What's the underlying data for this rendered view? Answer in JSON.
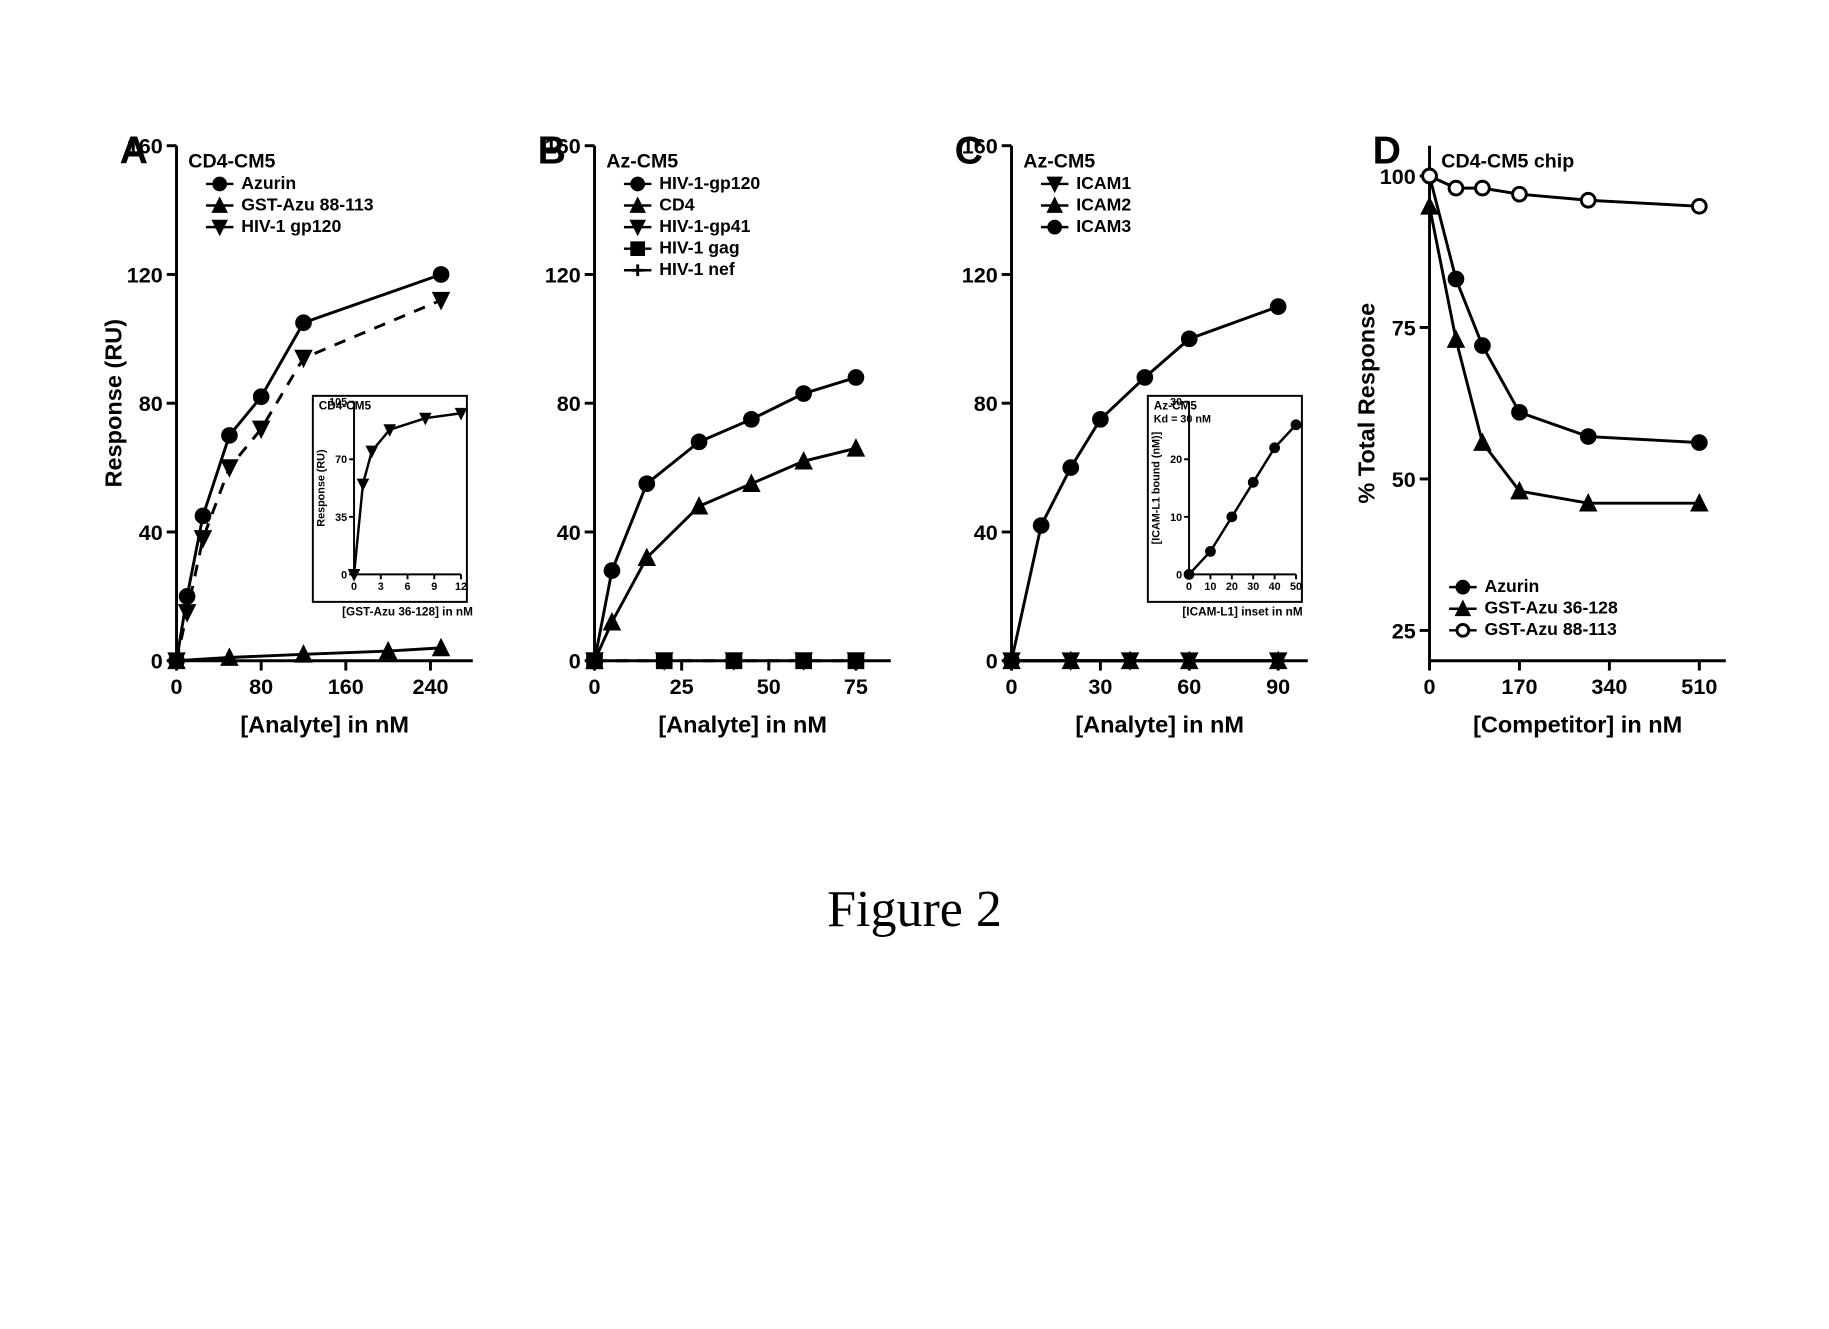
{
  "figure_caption": "Figure 2",
  "global": {
    "line_color": "#000000",
    "marker_fill": "#000000",
    "open_marker_fill": "#ffffff",
    "background": "#ffffff",
    "axis_stroke_width": 3,
    "data_stroke_width": 3,
    "panel_label_fontsize": 40,
    "axis_label_fontsize": 24,
    "tick_fontsize": 22,
    "legend_fontsize": 18,
    "title_fontsize": 20
  },
  "panels": {
    "A": {
      "label": "A",
      "title": "CD4-CM5",
      "xlabel": "[Analyte] in nM",
      "ylabel": "Response (RU)",
      "xlim": [
        0,
        280
      ],
      "xticks": [
        0,
        80,
        160,
        240
      ],
      "ylim": [
        0,
        160
      ],
      "yticks": [
        0,
        40,
        80,
        120,
        160
      ],
      "series": [
        {
          "name": "Azurin",
          "marker": "circle",
          "dash": "solid",
          "x": [
            0,
            10,
            25,
            50,
            80,
            120,
            250
          ],
          "y": [
            0,
            20,
            45,
            70,
            82,
            105,
            120
          ]
        },
        {
          "name": "GST-Azu 88-113",
          "marker": "triangle-up",
          "dash": "solid",
          "x": [
            0,
            50,
            120,
            200,
            250
          ],
          "y": [
            0,
            1,
            2,
            3,
            4
          ]
        },
        {
          "name": "HIV-1 gp120",
          "marker": "triangle-down",
          "dash": "dashed",
          "x": [
            0,
            10,
            25,
            50,
            80,
            120,
            250
          ],
          "y": [
            0,
            15,
            38,
            60,
            72,
            94,
            112
          ]
        }
      ],
      "inset": {
        "title": "CD4-CM5",
        "xlabel": "[GST-Azu 36-128] in nM",
        "ylabel": "Response (RU)",
        "xlim": [
          0,
          12
        ],
        "xticks": [
          0,
          3,
          6,
          9,
          12
        ],
        "ylim": [
          0,
          105
        ],
        "yticks": [
          0,
          35,
          70,
          105
        ],
        "series": [
          {
            "marker": "triangle-down",
            "dash": "solid",
            "x": [
              0,
              1,
              2,
              4,
              8,
              12
            ],
            "y": [
              0,
              55,
              75,
              88,
              95,
              98
            ]
          }
        ]
      }
    },
    "B": {
      "label": "B",
      "title": "Az-CM5",
      "xlabel": "[Analyte] in nM",
      "ylabel": "",
      "xlim": [
        0,
        85
      ],
      "xticks": [
        0,
        25,
        50,
        75
      ],
      "ylim": [
        0,
        160
      ],
      "yticks": [
        0,
        40,
        80,
        120,
        160
      ],
      "series": [
        {
          "name": "HIV-1-gp120",
          "marker": "circle",
          "dash": "solid",
          "x": [
            0,
            5,
            15,
            30,
            45,
            60,
            75
          ],
          "y": [
            0,
            28,
            55,
            68,
            75,
            83,
            88
          ]
        },
        {
          "name": "CD4",
          "marker": "triangle-up",
          "dash": "solid",
          "x": [
            0,
            5,
            15,
            30,
            45,
            60,
            75
          ],
          "y": [
            0,
            12,
            32,
            48,
            55,
            62,
            66
          ]
        },
        {
          "name": "HIV-1-gp41",
          "marker": "triangle-down",
          "dash": "dashed",
          "x": [
            0,
            20,
            40,
            60,
            75
          ],
          "y": [
            0,
            0,
            0,
            0,
            0
          ]
        },
        {
          "name": "HIV-1 gag",
          "marker": "square",
          "dash": "none",
          "x": [
            0,
            20,
            40,
            60,
            75
          ],
          "y": [
            0,
            0,
            0,
            0,
            0
          ]
        },
        {
          "name": "HIV-1 nef",
          "marker": "plus",
          "dash": "none",
          "x": [
            0,
            20,
            40,
            60,
            75
          ],
          "y": [
            0,
            0,
            0,
            0,
            0
          ]
        }
      ]
    },
    "C": {
      "label": "C",
      "title": "Az-CM5",
      "xlabel": "[Analyte] in nM",
      "ylabel": "",
      "xlim": [
        0,
        100
      ],
      "xticks": [
        0,
        30,
        60,
        90
      ],
      "ylim": [
        0,
        160
      ],
      "yticks": [
        0,
        40,
        80,
        120,
        160
      ],
      "series": [
        {
          "name": "ICAM1",
          "marker": "triangle-down",
          "dash": "solid",
          "x": [
            0,
            20,
            40,
            60,
            90
          ],
          "y": [
            0,
            0,
            0,
            0,
            0
          ]
        },
        {
          "name": "ICAM2",
          "marker": "triangle-up",
          "dash": "solid",
          "x": [
            0,
            20,
            40,
            60,
            90
          ],
          "y": [
            0,
            0,
            0,
            0,
            0
          ]
        },
        {
          "name": "ICAM3",
          "marker": "circle",
          "dash": "solid",
          "x": [
            0,
            10,
            20,
            30,
            45,
            60,
            90
          ],
          "y": [
            0,
            42,
            60,
            75,
            88,
            100,
            110
          ]
        }
      ],
      "inset": {
        "title": "Az-CM5",
        "subtitle": "Kd = 30 nM",
        "xlabel": "[ICAM-L1] inset in nM",
        "ylabel": "[ICAM-L1 bound (nM)]",
        "xlim": [
          0,
          50
        ],
        "xticks": [
          0,
          10,
          20,
          30,
          40,
          50
        ],
        "ylim": [
          0,
          30
        ],
        "yticks": [
          0,
          10,
          20,
          30
        ],
        "series": [
          {
            "marker": "circle",
            "dash": "solid",
            "x": [
              0,
              10,
              20,
              30,
              40,
              50
            ],
            "y": [
              0,
              4,
              10,
              16,
              22,
              26
            ]
          }
        ]
      }
    },
    "D": {
      "label": "D",
      "title": "CD4-CM5 chip",
      "xlabel": "[Competitor] in nM",
      "ylabel": "% Total Response",
      "xlim": [
        0,
        560
      ],
      "xticks": [
        0,
        170,
        340,
        510
      ],
      "ylim": [
        20,
        105
      ],
      "yticks": [
        25,
        50,
        75,
        100
      ],
      "series": [
        {
          "name": "Azurin",
          "marker": "circle",
          "dash": "solid",
          "x": [
            0,
            50,
            100,
            170,
            300,
            510
          ],
          "y": [
            100,
            83,
            72,
            61,
            57,
            56
          ]
        },
        {
          "name": "GST-Azu 36-128",
          "marker": "triangle-up",
          "dash": "solid",
          "x": [
            0,
            50,
            100,
            170,
            300,
            510
          ],
          "y": [
            95,
            73,
            56,
            48,
            46,
            46
          ]
        },
        {
          "name": "GST-Azu 88-113",
          "marker": "circle-open",
          "dash": "solid",
          "x": [
            0,
            50,
            100,
            170,
            300,
            510
          ],
          "y": [
            100,
            98,
            98,
            97,
            96,
            95
          ]
        }
      ]
    }
  }
}
